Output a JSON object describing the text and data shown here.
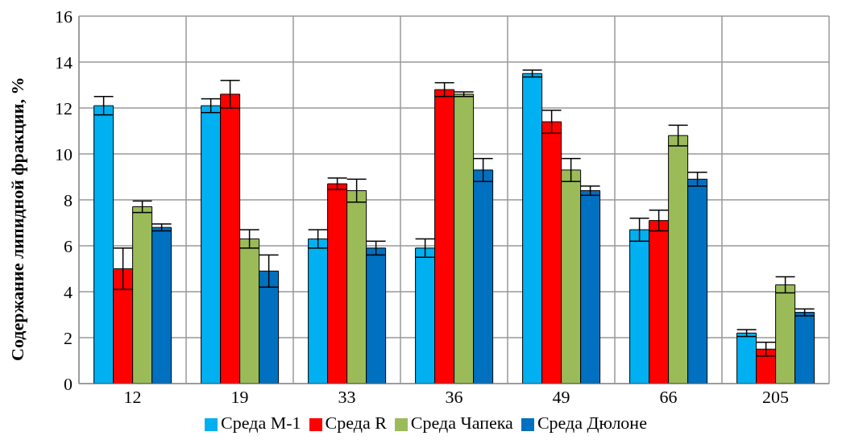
{
  "chart_data": {
    "type": "bar",
    "ylabel": "Содержание липидной фракции, %",
    "categories": [
      "12",
      "19",
      "33",
      "36",
      "49",
      "66",
      "205"
    ],
    "series": [
      {
        "name": "Среда М-1",
        "color": "#00b0f0",
        "values": [
          12.1,
          12.1,
          6.3,
          5.9,
          13.5,
          6.7,
          2.2
        ],
        "errors": [
          0.4,
          0.3,
          0.4,
          0.4,
          0.15,
          0.5,
          0.15
        ]
      },
      {
        "name": "Среда R",
        "color": "#ff0000",
        "values": [
          5.0,
          12.6,
          8.7,
          12.8,
          11.4,
          7.1,
          1.5
        ],
        "errors": [
          0.9,
          0.6,
          0.25,
          0.3,
          0.5,
          0.45,
          0.3
        ]
      },
      {
        "name": "Среда Чапека",
        "color": "#9bbb59",
        "values": [
          7.7,
          6.3,
          8.4,
          12.6,
          9.3,
          10.8,
          4.3
        ],
        "errors": [
          0.25,
          0.4,
          0.5,
          0.1,
          0.5,
          0.45,
          0.35
        ]
      },
      {
        "name": "Среда Дюлоне",
        "color": "#0070c0",
        "values": [
          6.8,
          4.9,
          5.9,
          9.3,
          8.4,
          8.9,
          3.1
        ],
        "errors": [
          0.15,
          0.7,
          0.3,
          0.5,
          0.2,
          0.3,
          0.15
        ]
      }
    ],
    "ylim": [
      0,
      16
    ],
    "yticks": [
      0,
      2,
      4,
      6,
      8,
      10,
      12,
      14,
      16
    ],
    "grid": true,
    "legend": "bottom"
  }
}
